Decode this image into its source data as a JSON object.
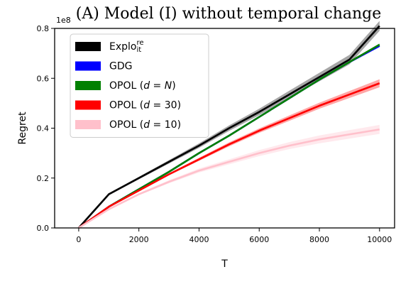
{
  "chart_data": {
    "type": "line",
    "title": "(A) Model (I) without temporal change",
    "xlabel": "T",
    "ylabel": "Regret",
    "y_offset_label": "1e8",
    "xlim": [
      -800,
      10500
    ],
    "ylim": [
      0,
      0.8
    ],
    "x_ticks": [
      0,
      2000,
      4000,
      6000,
      8000,
      10000
    ],
    "x_tick_labels": [
      "0",
      "2000",
      "4000",
      "6000",
      "8000",
      "10000"
    ],
    "y_ticks": [
      0,
      0.2,
      0.4,
      0.6,
      0.8
    ],
    "y_tick_labels": [
      "0.0",
      "0.2",
      "0.4",
      "0.6",
      "0.8"
    ],
    "grid": false,
    "legend_position": "upper-left",
    "series": [
      {
        "name_base": "Explo",
        "name_sup": "re",
        "name_sub": "it",
        "color": "#000000",
        "band_color": "#000000",
        "x": [
          0,
          1000,
          2000,
          3000,
          4000,
          5000,
          6000,
          7000,
          8000,
          9000,
          10000
        ],
        "y": [
          0,
          0.135,
          0.2,
          0.265,
          0.33,
          0.4,
          0.465,
          0.535,
          0.605,
          0.675,
          0.81
        ],
        "band": [
          0,
          0.003,
          0.005,
          0.007,
          0.009,
          0.011,
          0.013,
          0.015,
          0.017,
          0.019,
          0.02
        ]
      },
      {
        "name_base": "GDG",
        "color": "#0000ff",
        "band_color": "#0000ff",
        "x": [
          0,
          1000,
          2000,
          3000,
          4000,
          5000,
          6000,
          7000,
          8000,
          9000,
          10000
        ],
        "y": [
          0,
          0.085,
          0.155,
          0.225,
          0.3,
          0.37,
          0.445,
          0.52,
          0.595,
          0.665,
          0.73
        ],
        "band": [
          0,
          0.001,
          0.002,
          0.002,
          0.003,
          0.003,
          0.003,
          0.004,
          0.004,
          0.004,
          0.005
        ]
      },
      {
        "name_base": "OPOL (",
        "name_math": "d",
        "name_eq": " = ",
        "name_math2": "N",
        "name_end": ")",
        "color": "#008000",
        "band_color": "#008000",
        "x": [
          0,
          1000,
          2000,
          3000,
          4000,
          5000,
          6000,
          7000,
          8000,
          9000,
          10000
        ],
        "y": [
          0,
          0.085,
          0.155,
          0.225,
          0.3,
          0.37,
          0.445,
          0.52,
          0.595,
          0.665,
          0.735
        ],
        "band": [
          0,
          0.001,
          0.002,
          0.002,
          0.003,
          0.003,
          0.003,
          0.004,
          0.004,
          0.004,
          0.005
        ]
      },
      {
        "name_base": "OPOL (",
        "name_math": "d",
        "name_eq": " = ",
        "name_value": "30",
        "name_end": ")",
        "color": "#ff0000",
        "band_color": "#ff0000",
        "x": [
          0,
          1000,
          2000,
          3000,
          4000,
          5000,
          6000,
          7000,
          8000,
          9000,
          10000
        ],
        "y": [
          0,
          0.085,
          0.15,
          0.215,
          0.275,
          0.335,
          0.39,
          0.44,
          0.49,
          0.535,
          0.58
        ],
        "band": [
          0,
          0.002,
          0.003,
          0.004,
          0.006,
          0.008,
          0.009,
          0.011,
          0.012,
          0.014,
          0.016
        ]
      },
      {
        "name_base": "OPOL (",
        "name_math": "d",
        "name_eq": " = ",
        "name_value": "10",
        "name_end": ")",
        "color": "#ffc0cb",
        "band_color": "#ffc0cb",
        "x": [
          0,
          1000,
          2000,
          3000,
          4000,
          5000,
          6000,
          7000,
          8000,
          9000,
          10000
        ],
        "y": [
          0,
          0.075,
          0.135,
          0.185,
          0.23,
          0.265,
          0.3,
          0.33,
          0.355,
          0.375,
          0.395
        ],
        "band": [
          0,
          0.002,
          0.004,
          0.006,
          0.008,
          0.01,
          0.012,
          0.014,
          0.016,
          0.017,
          0.018
        ]
      }
    ]
  }
}
